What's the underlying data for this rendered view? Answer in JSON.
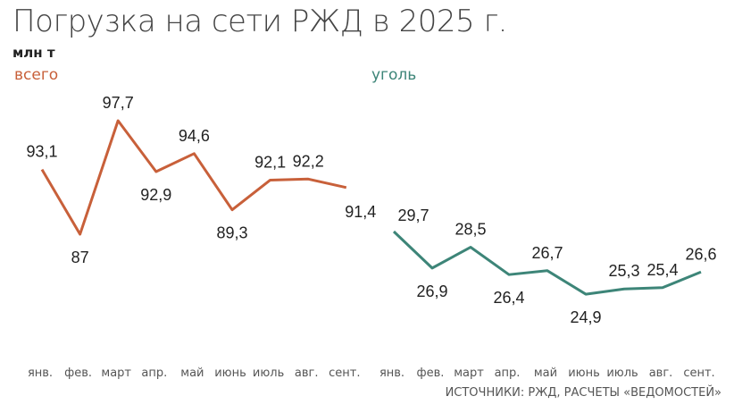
{
  "chart_data": [
    {
      "type": "line",
      "title": "Погрузка на сети РЖД в 2025 г.",
      "unit": "млн т",
      "series_label": "всего",
      "color": "#c8603a",
      "categories": [
        "янв.",
        "фев.",
        "март",
        "апр.",
        "май",
        "июнь",
        "июль",
        "авг.",
        "сент."
      ],
      "values": [
        93.1,
        87,
        97.7,
        92.9,
        94.6,
        89.3,
        92.1,
        92.2,
        91.4
      ],
      "data_labels": [
        "93,1",
        "87",
        "97,7",
        "92,9",
        "94,6",
        "89,3",
        "92,1",
        "92,2",
        "91,4"
      ]
    },
    {
      "type": "line",
      "series_label": "уголь",
      "color": "#3d8578",
      "categories": [
        "янв.",
        "фев.",
        "март",
        "апр.",
        "май",
        "июнь",
        "июль",
        "авг.",
        "сент."
      ],
      "values": [
        29.7,
        26.9,
        28.5,
        26.4,
        26.7,
        24.9,
        25.3,
        25.4,
        26.6
      ],
      "data_labels": [
        "29,7",
        "26,9",
        "28,5",
        "26,4",
        "26,7",
        "24,9",
        "25,3",
        "25,4",
        "26,6"
      ]
    }
  ],
  "source": "ИСТОЧНИКИ: РЖД, РАСЧЕТЫ «ВЕДОМОСТЕЙ»"
}
